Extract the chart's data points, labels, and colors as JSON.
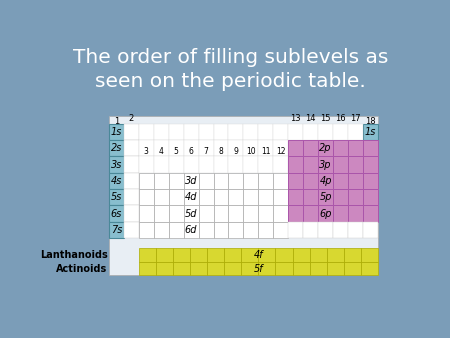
{
  "title": "The order of filling sublevels as\nseen on the periodic table.",
  "bg_color": "#7b9db8",
  "table_bg": "#e8eef4",
  "s_color": "#88bece",
  "s_border": "#4a8898",
  "p_color": "#cc88c0",
  "p_border": "#aa55aa",
  "d_color": "#ffffff",
  "d_border": "#aaaaaa",
  "f_color": "#d8d830",
  "f_border": "#aaaa00",
  "white_cell": "#ffffff",
  "white_border": "#cccccc",
  "title_color": "#ffffff",
  "title_fontsize": 14.5,
  "cell_fontsize": 7,
  "num_fontsize": 6,
  "s_labels": [
    "1s",
    "2s",
    "3s",
    "4s",
    "5s",
    "6s",
    "7s"
  ],
  "d_labels": [
    "3d",
    "4d",
    "5d",
    "6d"
  ],
  "p_labels": [
    "2p",
    "3p",
    "4p",
    "5p",
    "6p"
  ],
  "f_labels": [
    "4f",
    "5f"
  ]
}
